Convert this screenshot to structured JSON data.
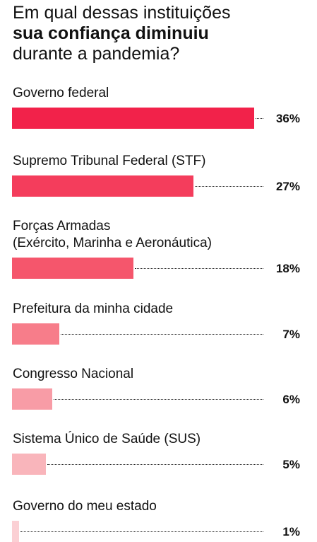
{
  "title": {
    "line1": "Em qual dessas instituições",
    "line2_bold": "sua confiança diminuiu",
    "line3": "durante a pandemia?"
  },
  "chart_data": {
    "type": "bar",
    "orientation": "horizontal",
    "title": "Em qual dessas instituições sua confiança diminuiu durante a pandemia?",
    "categories": [
      [
        "Governo federal"
      ],
      [
        "Supremo Tribunal Federal (STF)"
      ],
      [
        "Forças Armadas",
        "(Exército, Marinha e Aeronáutica)"
      ],
      [
        "Prefeitura da minha cidade"
      ],
      [
        "Congresso Nacional"
      ],
      [
        "Sistema Único de Saúde (SUS)"
      ],
      [
        "Governo do meu estado"
      ]
    ],
    "values": [
      36,
      27,
      18,
      7,
      6,
      5,
      1
    ],
    "value_labels": [
      "36%",
      "27%",
      "18%",
      "7%",
      "6%",
      "5%",
      "1%"
    ],
    "unit": "%",
    "xlim": [
      0,
      36
    ],
    "colors": [
      "#f2224a",
      "#f43d5c",
      "#f5566c",
      "#f77d8a",
      "#f89ca6",
      "#f9b5bb",
      "#fbd0d4"
    ],
    "grid": false,
    "legend": "none"
  }
}
